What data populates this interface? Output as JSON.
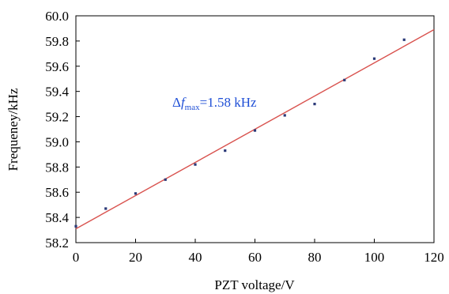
{
  "chart_data": {
    "type": "scatter",
    "xlabel": "PZT voltage/V",
    "ylabel": "Frequeney/kHz",
    "xlim": [
      0,
      120
    ],
    "ylim": [
      58.2,
      60.0
    ],
    "x_ticks": [
      "0",
      "20",
      "40",
      "60",
      "80",
      "100",
      "120"
    ],
    "y_ticks": [
      "58.2",
      "58.4",
      "58.6",
      "58.8",
      "59.0",
      "59.2",
      "59.4",
      "59.6",
      "59.8",
      "60.0"
    ],
    "grid": false,
    "series": [
      {
        "x": [
          0,
          10,
          20,
          30,
          40,
          50,
          60,
          70,
          80,
          90,
          100,
          110
        ],
        "y": [
          58.33,
          58.47,
          58.59,
          58.7,
          58.82,
          58.93,
          59.09,
          59.21,
          59.3,
          59.49,
          59.66,
          59.81
        ],
        "color": "#2b3a78"
      }
    ],
    "fit_line": {
      "x": [
        0,
        120
      ],
      "y": [
        58.31,
        59.89
      ],
      "color": "#d9534f"
    },
    "annotation": {
      "delta": "Δ",
      "f": "f",
      "sub": "max",
      "rest": "=1.58 kHz",
      "color": "#1f4fd6"
    }
  }
}
